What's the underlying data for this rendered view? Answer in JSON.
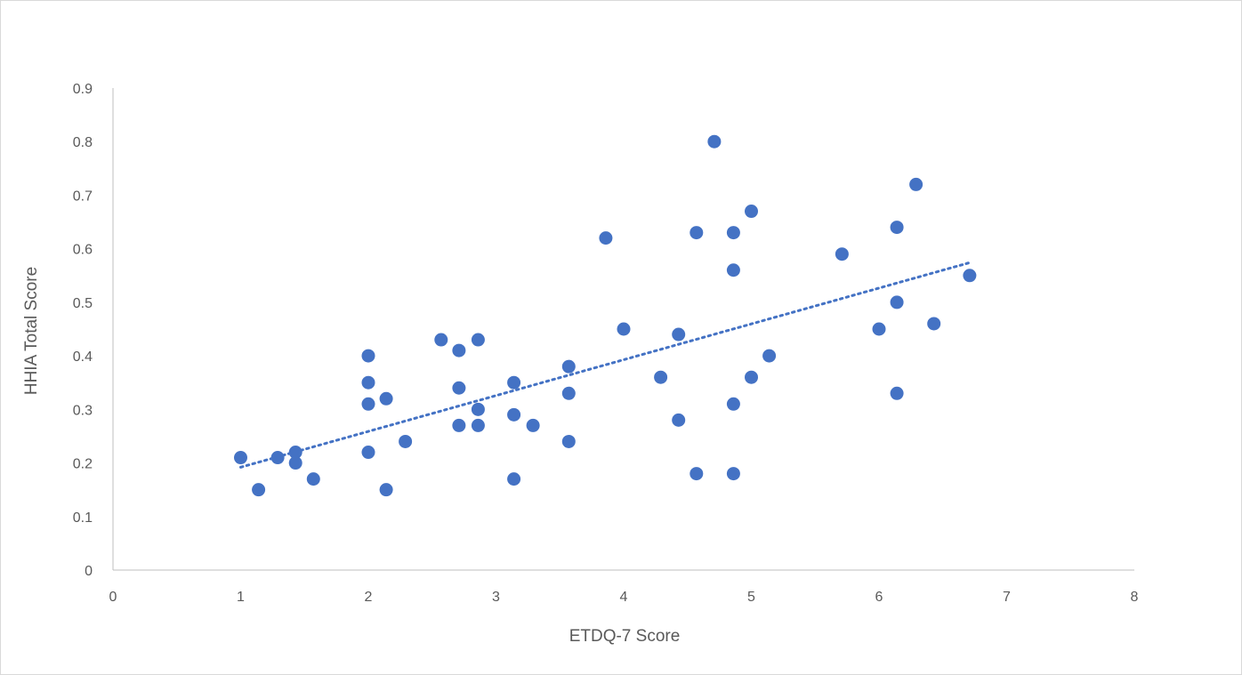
{
  "chart_data": {
    "type": "scatter",
    "title": "",
    "xlabel": "ETDQ-7 Score",
    "ylabel": "HHIA Total Score",
    "xlim": [
      0,
      8
    ],
    "ylim": [
      0,
      0.9
    ],
    "xticks": [
      "0",
      "1",
      "2",
      "3",
      "4",
      "5",
      "6",
      "7",
      "8"
    ],
    "yticks": [
      "0",
      "0.1",
      "0.2",
      "0.3",
      "0.4",
      "0.5",
      "0.6",
      "0.7",
      "0.8",
      "0.9"
    ],
    "grid": false,
    "legend": "none",
    "marker_color": "#4472c4",
    "series": [
      {
        "points": [
          [
            1.0,
            0.21
          ],
          [
            1.14,
            0.15
          ],
          [
            1.29,
            0.21
          ],
          [
            1.43,
            0.22
          ],
          [
            1.43,
            0.2
          ],
          [
            1.57,
            0.17
          ],
          [
            2.0,
            0.4
          ],
          [
            2.0,
            0.35
          ],
          [
            2.0,
            0.31
          ],
          [
            2.0,
            0.22
          ],
          [
            2.14,
            0.32
          ],
          [
            2.14,
            0.15
          ],
          [
            2.29,
            0.24
          ],
          [
            2.57,
            0.43
          ],
          [
            2.71,
            0.41
          ],
          [
            2.71,
            0.34
          ],
          [
            2.71,
            0.27
          ],
          [
            2.86,
            0.43
          ],
          [
            2.86,
            0.3
          ],
          [
            2.86,
            0.27
          ],
          [
            3.14,
            0.35
          ],
          [
            3.14,
            0.29
          ],
          [
            3.14,
            0.17
          ],
          [
            3.29,
            0.27
          ],
          [
            3.57,
            0.38
          ],
          [
            3.57,
            0.33
          ],
          [
            3.57,
            0.24
          ],
          [
            3.86,
            0.62
          ],
          [
            4.0,
            0.45
          ],
          [
            4.29,
            0.36
          ],
          [
            4.43,
            0.44
          ],
          [
            4.43,
            0.28
          ],
          [
            4.57,
            0.63
          ],
          [
            4.57,
            0.18
          ],
          [
            4.71,
            0.8
          ],
          [
            4.86,
            0.63
          ],
          [
            4.86,
            0.56
          ],
          [
            4.86,
            0.31
          ],
          [
            4.86,
            0.18
          ],
          [
            5.0,
            0.67
          ],
          [
            5.0,
            0.36
          ],
          [
            5.14,
            0.4
          ],
          [
            5.71,
            0.59
          ],
          [
            6.0,
            0.45
          ],
          [
            6.14,
            0.64
          ],
          [
            6.14,
            0.5
          ],
          [
            6.14,
            0.33
          ],
          [
            6.29,
            0.72
          ],
          [
            6.43,
            0.46
          ],
          [
            6.71,
            0.55
          ]
        ]
      }
    ],
    "trendline": {
      "type": "linear",
      "style": "dotted",
      "x": [
        1.0,
        6.71
      ],
      "y": [
        0.192,
        0.574
      ]
    }
  }
}
